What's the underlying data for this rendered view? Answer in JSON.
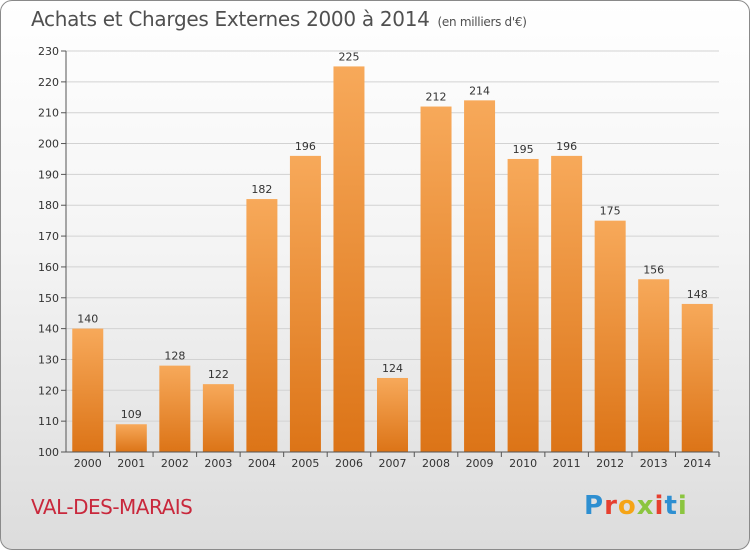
{
  "header": {
    "title": "Achats et Charges Externes 2000 à 2014",
    "subtitle": "(en milliers d'€)"
  },
  "footer": {
    "commune": "VAL-DES-MARAIS",
    "logo_letters": [
      "P",
      "r",
      "o",
      "x",
      "i",
      "t",
      "i"
    ],
    "logo_colors": [
      "#2e8fd1",
      "#e63f2f",
      "#f5a416",
      "#8bc53f",
      "#e63f2f",
      "#2e8fd1",
      "#8bc53f"
    ]
  },
  "colors": {
    "bar_top": "#f7a95a",
    "bar_bottom": "#dc7417",
    "grid": "#d2d2d2",
    "axis_text": "#333333",
    "commune": "#c9283c"
  },
  "chart_data": {
    "type": "bar",
    "categories": [
      "2000",
      "2001",
      "2002",
      "2003",
      "2004",
      "2005",
      "2006",
      "2007",
      "2008",
      "2009",
      "2010",
      "2011",
      "2012",
      "2013",
      "2014"
    ],
    "values": [
      140,
      109,
      128,
      122,
      182,
      196,
      225,
      124,
      212,
      214,
      195,
      196,
      175,
      156,
      148
    ],
    "title": "Achats et Charges Externes 2000 à 2014",
    "subtitle": "(en milliers d'€)",
    "xlabel": "",
    "ylabel": "",
    "ylim": [
      100,
      230
    ],
    "yticks": [
      100,
      110,
      120,
      130,
      140,
      150,
      160,
      170,
      180,
      190,
      200,
      210,
      220,
      230
    ],
    "grid": true,
    "legend": "none"
  }
}
